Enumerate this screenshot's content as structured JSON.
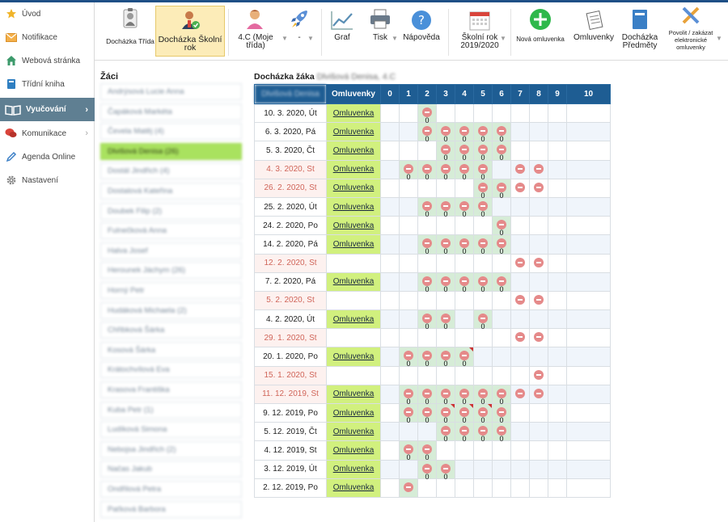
{
  "sidebar": {
    "items": [
      {
        "label": "Úvod",
        "icon": "star-icon",
        "color": "#f0b429"
      },
      {
        "label": "Notifikace",
        "icon": "envelope-icon",
        "color": "#e8a23a"
      },
      {
        "label": "Webová stránka",
        "icon": "house-icon",
        "color": "#3c9a6b"
      },
      {
        "label": "Třídní kniha",
        "icon": "book-icon",
        "color": "#2f7fc1"
      },
      {
        "label": "Vyučování",
        "icon": "open-book-icon",
        "color": "#ffffff"
      },
      {
        "label": "Komunikace",
        "icon": "chat-bubbles-icon",
        "color": "#d9443b"
      },
      {
        "label": "Agenda Online",
        "icon": "pen-icon",
        "color": "#3b7fc6"
      },
      {
        "label": "Nastavení",
        "icon": "gear-icon",
        "color": "#888888"
      }
    ]
  },
  "toolbar": {
    "dochazka_trida": "Docházka Třída",
    "dochazka_skolni_rok": "Docházka Školní rok",
    "trida": "4.C (Moje třída)",
    "rocket": "-",
    "graf": "Graf",
    "tisk": "Tisk",
    "napoveda": "Nápověda",
    "skolni_rok": "Školní rok 2019/2020",
    "nova_omluvenka": "Nová omluvenka",
    "omluvenky": "Omluvenky",
    "dochazka_predmety": "Docházka Předměty",
    "povolit": "Povolit / zakázat elektronické omluvenky"
  },
  "students_title": "Žáci",
  "students": [
    "Andrýsová Lucie Anna",
    "Čapáková Markéta",
    "Čevela Matěj (4)",
    "Dlvišová Denisa (26)",
    "Dostál Jindřich (4)",
    "Dostalová Kateřina",
    "Doubek Filip (2)",
    "Fulnečková Anna",
    "Halva Josef",
    "Herounek Jáchym (26)",
    "Horný Petr",
    "Hudáková Michaela (2)",
    "Chřibková Šárka",
    "Kosová Šárka",
    "Krátochvílová Eva",
    "Krasova Františka",
    "Kuba Petr (1)",
    "Ludíková Simona",
    "Nebojsa Jindřich (2)",
    "Načas Jakub",
    "Ondřilová Petra",
    "Paťková Barbora"
  ],
  "attendance": {
    "title": "Docházka žáka",
    "student_name": "Dlvišová Denisa, 4.C",
    "header_name": "Dlvišová Denisa",
    "header_omluvenky": "Omluvenky",
    "hours": [
      "0",
      "1",
      "2",
      "3",
      "4",
      "5",
      "6",
      "7",
      "8",
      "9",
      "10"
    ],
    "rows": [
      {
        "date": "10. 3. 2020, Út",
        "holiday": false,
        "omluvenka": "Omluvenka",
        "marks": [
          [
            2,
            "0",
            false
          ]
        ]
      },
      {
        "date": "6. 3. 2020, Pá",
        "holiday": false,
        "omluvenka": "Omluvenka",
        "marks": [
          [
            2,
            "0",
            false
          ],
          [
            3,
            "0",
            false
          ],
          [
            4,
            "0",
            false
          ],
          [
            5,
            "0",
            false
          ],
          [
            6,
            "0",
            false
          ]
        ]
      },
      {
        "date": "5. 3. 2020, Čt",
        "holiday": false,
        "omluvenka": "Omluvenka",
        "marks": [
          [
            3,
            "0",
            false
          ],
          [
            4,
            "0",
            false
          ],
          [
            5,
            "0",
            false
          ],
          [
            6,
            "0",
            false
          ]
        ]
      },
      {
        "date": "4. 3. 2020, St",
        "holiday": true,
        "omluvenka": "Omluvenka",
        "marks": [
          [
            1,
            "0",
            false
          ],
          [
            2,
            "0",
            false
          ],
          [
            3,
            "0",
            false
          ],
          [
            4,
            "0",
            false
          ],
          [
            5,
            "0",
            false
          ],
          [
            7,
            "",
            false
          ],
          [
            8,
            "",
            false
          ]
        ]
      },
      {
        "date": "26. 2. 2020, St",
        "holiday": true,
        "omluvenka": "Omluvenka",
        "marks": [
          [
            5,
            "0",
            false
          ],
          [
            6,
            "0",
            false
          ],
          [
            7,
            "",
            false
          ],
          [
            8,
            "",
            false
          ]
        ]
      },
      {
        "date": "25. 2. 2020, Út",
        "holiday": false,
        "omluvenka": "Omluvenka",
        "marks": [
          [
            2,
            "0",
            false
          ],
          [
            3,
            "0",
            false
          ],
          [
            4,
            "0",
            false
          ],
          [
            5,
            "0",
            false
          ]
        ]
      },
      {
        "date": "24. 2. 2020, Po",
        "holiday": false,
        "omluvenka": "Omluvenka",
        "marks": [
          [
            6,
            "0",
            false
          ]
        ]
      },
      {
        "date": "14. 2. 2020, Pá",
        "holiday": false,
        "omluvenka": "Omluvenka",
        "marks": [
          [
            2,
            "0",
            false
          ],
          [
            3,
            "0",
            false
          ],
          [
            4,
            "0",
            false
          ],
          [
            5,
            "0",
            false
          ],
          [
            6,
            "0",
            false
          ]
        ]
      },
      {
        "date": "12. 2. 2020, St",
        "holiday": true,
        "omluvenka": "",
        "marks": [
          [
            7,
            "",
            false
          ],
          [
            8,
            "",
            false
          ]
        ]
      },
      {
        "date": "7. 2. 2020, Pá",
        "holiday": false,
        "omluvenka": "Omluvenka",
        "marks": [
          [
            2,
            "0",
            false
          ],
          [
            3,
            "0",
            false
          ],
          [
            4,
            "0",
            false
          ],
          [
            5,
            "0",
            false
          ],
          [
            6,
            "0",
            false
          ]
        ]
      },
      {
        "date": "5. 2. 2020, St",
        "holiday": true,
        "omluvenka": "",
        "marks": [
          [
            7,
            "",
            false
          ],
          [
            8,
            "",
            false
          ]
        ]
      },
      {
        "date": "4. 2. 2020, Út",
        "holiday": false,
        "omluvenka": "Omluvenka",
        "marks": [
          [
            2,
            "0",
            false
          ],
          [
            3,
            "0",
            false
          ],
          [
            5,
            "0",
            false
          ]
        ]
      },
      {
        "date": "29. 1. 2020, St",
        "holiday": true,
        "omluvenka": "",
        "marks": [
          [
            7,
            "",
            false
          ],
          [
            8,
            "",
            false
          ]
        ]
      },
      {
        "date": "20. 1. 2020, Po",
        "holiday": false,
        "omluvenka": "Omluvenka",
        "marks": [
          [
            1,
            "0",
            false
          ],
          [
            2,
            "0",
            false
          ],
          [
            3,
            "0",
            false
          ],
          [
            4,
            "0",
            true
          ]
        ]
      },
      {
        "date": "15. 1. 2020, St",
        "holiday": true,
        "omluvenka": "",
        "marks": [
          [
            8,
            "",
            false
          ]
        ]
      },
      {
        "date": "11. 12. 2019, St",
        "holiday": true,
        "omluvenka": "Omluvenka",
        "marks": [
          [
            1,
            "0",
            false
          ],
          [
            2,
            "0",
            false
          ],
          [
            3,
            "0",
            false
          ],
          [
            4,
            "0",
            false
          ],
          [
            5,
            "0",
            false
          ],
          [
            6,
            "0",
            false
          ],
          [
            7,
            "",
            false
          ],
          [
            8,
            "",
            false
          ]
        ]
      },
      {
        "date": "9. 12. 2019, Po",
        "holiday": false,
        "omluvenka": "Omluvenka",
        "marks": [
          [
            1,
            "0",
            false
          ],
          [
            2,
            "0",
            false
          ],
          [
            3,
            "0",
            true
          ],
          [
            4,
            "0",
            true
          ],
          [
            5,
            "0",
            true
          ],
          [
            6,
            "0",
            false
          ]
        ]
      },
      {
        "date": "5. 12. 2019, Čt",
        "holiday": false,
        "omluvenka": "Omluvenka",
        "marks": [
          [
            3,
            "0",
            false
          ],
          [
            4,
            "0",
            false
          ],
          [
            5,
            "0",
            false
          ],
          [
            6,
            "0",
            false
          ]
        ]
      },
      {
        "date": "4. 12. 2019, St",
        "holiday": false,
        "omluvenka": "Omluvenka",
        "marks": [
          [
            1,
            "0",
            false
          ],
          [
            2,
            "0",
            false
          ]
        ]
      },
      {
        "date": "3. 12. 2019, Út",
        "holiday": false,
        "omluvenka": "Omluvenka",
        "marks": [
          [
            2,
            "0",
            false
          ],
          [
            3,
            "0",
            false
          ]
        ]
      },
      {
        "date": "2. 12. 2019, Po",
        "holiday": false,
        "omluvenka": "Omluvenka",
        "marks": [
          [
            1,
            "",
            false
          ]
        ]
      }
    ]
  }
}
